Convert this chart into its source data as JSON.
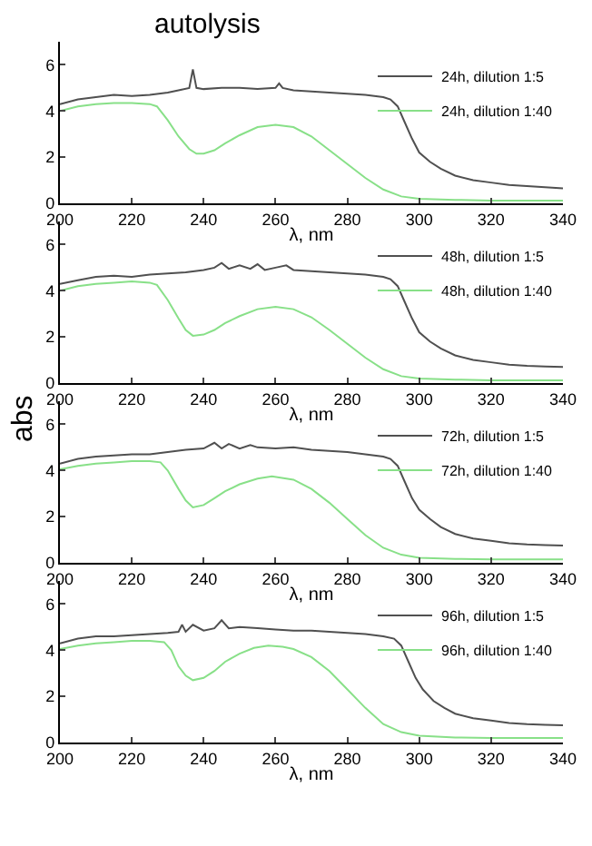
{
  "chart_data": [
    {
      "type": "line",
      "title": "autolysis",
      "xlabel": "λ, nm",
      "xlim": [
        200,
        340
      ],
      "ylim": [
        0,
        7
      ],
      "xticks": [
        200,
        220,
        240,
        260,
        280,
        300,
        320,
        340
      ],
      "yticks": [
        0,
        2,
        4,
        6
      ],
      "grid": false,
      "legend": "top right",
      "series": [
        {
          "name": "24h, dilution 1:5",
          "color": "#505050",
          "x": [
            200,
            205,
            210,
            215,
            220,
            225,
            230,
            233,
            236,
            237,
            238,
            240,
            245,
            250,
            255,
            260,
            261,
            262,
            265,
            270,
            275,
            280,
            285,
            290,
            292,
            294,
            296,
            298,
            300,
            303,
            306,
            310,
            315,
            320,
            325,
            330,
            335,
            340
          ],
          "values": [
            4.3,
            4.5,
            4.6,
            4.7,
            4.65,
            4.7,
            4.8,
            4.9,
            5.0,
            5.8,
            5.0,
            4.95,
            5.0,
            5.0,
            4.95,
            5.0,
            5.2,
            5.0,
            4.9,
            4.85,
            4.8,
            4.75,
            4.7,
            4.6,
            4.5,
            4.2,
            3.5,
            2.8,
            2.2,
            1.8,
            1.5,
            1.2,
            1.0,
            0.9,
            0.8,
            0.75,
            0.7,
            0.65
          ]
        },
        {
          "name": "24h, dilution 1:40",
          "color": "#88e088",
          "x": [
            200,
            205,
            210,
            215,
            220,
            225,
            227,
            230,
            233,
            236,
            238,
            240,
            243,
            246,
            250,
            255,
            260,
            265,
            270,
            275,
            280,
            285,
            290,
            295,
            300,
            310,
            320,
            340
          ],
          "values": [
            4.0,
            4.2,
            4.3,
            4.35,
            4.35,
            4.3,
            4.2,
            3.6,
            2.9,
            2.35,
            2.15,
            2.15,
            2.3,
            2.6,
            2.95,
            3.3,
            3.4,
            3.3,
            2.9,
            2.3,
            1.7,
            1.1,
            0.6,
            0.3,
            0.2,
            0.15,
            0.12,
            0.12
          ]
        }
      ]
    },
    {
      "type": "line",
      "xlabel": "λ, nm",
      "ylabel": "abs",
      "xlim": [
        200,
        340
      ],
      "ylim": [
        0,
        7
      ],
      "xticks": [
        200,
        220,
        240,
        260,
        280,
        300,
        320,
        340
      ],
      "yticks": [
        0,
        2,
        4,
        6
      ],
      "grid": false,
      "legend": "top right",
      "series": [
        {
          "name": "48h, dilution 1:5",
          "color": "#505050",
          "x": [
            200,
            205,
            210,
            215,
            220,
            225,
            230,
            235,
            240,
            243,
            245,
            247,
            250,
            253,
            255,
            257,
            260,
            263,
            265,
            270,
            275,
            280,
            285,
            290,
            292,
            294,
            296,
            298,
            300,
            303,
            306,
            310,
            315,
            320,
            325,
            330,
            335,
            340
          ],
          "values": [
            4.3,
            4.45,
            4.6,
            4.65,
            4.6,
            4.7,
            4.75,
            4.8,
            4.9,
            5.0,
            5.2,
            4.95,
            5.1,
            4.95,
            5.15,
            4.9,
            5.0,
            5.1,
            4.9,
            4.85,
            4.8,
            4.75,
            4.7,
            4.6,
            4.5,
            4.2,
            3.5,
            2.8,
            2.2,
            1.8,
            1.5,
            1.2,
            1.0,
            0.9,
            0.8,
            0.75,
            0.72,
            0.7
          ]
        },
        {
          "name": "48h, dilution 1:40",
          "color": "#88e088",
          "x": [
            200,
            205,
            210,
            215,
            220,
            225,
            227,
            230,
            233,
            235,
            237,
            240,
            243,
            246,
            250,
            255,
            260,
            265,
            270,
            275,
            280,
            285,
            290,
            295,
            300,
            310,
            320,
            340
          ],
          "values": [
            4.0,
            4.2,
            4.3,
            4.35,
            4.4,
            4.35,
            4.25,
            3.6,
            2.8,
            2.3,
            2.05,
            2.1,
            2.3,
            2.6,
            2.9,
            3.2,
            3.3,
            3.2,
            2.85,
            2.3,
            1.7,
            1.1,
            0.6,
            0.3,
            0.2,
            0.15,
            0.12,
            0.12
          ]
        }
      ]
    },
    {
      "type": "line",
      "xlabel": "λ, nm",
      "xlim": [
        200,
        340
      ],
      "ylim": [
        0,
        7
      ],
      "xticks": [
        200,
        220,
        240,
        260,
        280,
        300,
        320,
        340
      ],
      "yticks": [
        0,
        2,
        4,
        6
      ],
      "grid": false,
      "legend": "top right",
      "series": [
        {
          "name": "72h, dilution 1:5",
          "color": "#505050",
          "x": [
            200,
            205,
            210,
            215,
            220,
            225,
            230,
            235,
            240,
            243,
            245,
            247,
            250,
            253,
            255,
            260,
            265,
            270,
            275,
            280,
            285,
            290,
            292,
            294,
            296,
            298,
            300,
            303,
            306,
            310,
            315,
            320,
            325,
            330,
            335,
            340
          ],
          "values": [
            4.3,
            4.5,
            4.6,
            4.65,
            4.7,
            4.7,
            4.8,
            4.9,
            4.95,
            5.2,
            4.95,
            5.15,
            4.95,
            5.1,
            5.0,
            4.95,
            5.0,
            4.9,
            4.85,
            4.8,
            4.7,
            4.6,
            4.5,
            4.2,
            3.5,
            2.8,
            2.3,
            1.9,
            1.55,
            1.25,
            1.05,
            0.95,
            0.85,
            0.8,
            0.77,
            0.75
          ]
        },
        {
          "name": "72h, dilution 1:40",
          "color": "#88e088",
          "x": [
            200,
            205,
            210,
            215,
            220,
            225,
            228,
            230,
            233,
            235,
            237,
            240,
            243,
            246,
            250,
            255,
            259,
            265,
            270,
            275,
            280,
            285,
            290,
            295,
            300,
            310,
            320,
            340
          ],
          "values": [
            4.05,
            4.2,
            4.3,
            4.35,
            4.4,
            4.4,
            4.35,
            4.0,
            3.2,
            2.7,
            2.4,
            2.5,
            2.8,
            3.1,
            3.4,
            3.65,
            3.75,
            3.6,
            3.2,
            2.6,
            1.9,
            1.2,
            0.65,
            0.35,
            0.22,
            0.17,
            0.15,
            0.15
          ]
        }
      ]
    },
    {
      "type": "line",
      "xlabel": "λ, nm",
      "xlim": [
        200,
        340
      ],
      "ylim": [
        0,
        7
      ],
      "xticks": [
        200,
        220,
        240,
        260,
        280,
        300,
        320,
        340
      ],
      "yticks": [
        0,
        2,
        4,
        6
      ],
      "grid": false,
      "legend": "top right",
      "series": [
        {
          "name": "96h, dilution 1:5",
          "color": "#505050",
          "x": [
            200,
            205,
            210,
            215,
            220,
            225,
            230,
            233,
            234,
            235,
            237,
            240,
            243,
            245,
            247,
            250,
            255,
            260,
            265,
            270,
            275,
            280,
            285,
            290,
            293,
            295,
            297,
            299,
            301,
            304,
            307,
            310,
            315,
            320,
            325,
            330,
            335,
            340
          ],
          "values": [
            4.3,
            4.5,
            4.6,
            4.6,
            4.65,
            4.7,
            4.75,
            4.8,
            5.1,
            4.8,
            5.1,
            4.85,
            4.95,
            5.3,
            4.95,
            5.0,
            4.95,
            4.9,
            4.85,
            4.85,
            4.8,
            4.75,
            4.7,
            4.6,
            4.5,
            4.2,
            3.5,
            2.8,
            2.3,
            1.8,
            1.5,
            1.25,
            1.05,
            0.95,
            0.85,
            0.8,
            0.77,
            0.75
          ]
        },
        {
          "name": "96h, dilution 1:40",
          "color": "#88e088",
          "x": [
            200,
            205,
            210,
            215,
            220,
            225,
            229,
            231,
            233,
            235,
            237,
            240,
            243,
            246,
            250,
            254,
            258,
            262,
            265,
            270,
            275,
            280,
            285,
            290,
            295,
            300,
            310,
            320,
            340
          ],
          "values": [
            4.05,
            4.2,
            4.3,
            4.35,
            4.4,
            4.4,
            4.35,
            4.0,
            3.3,
            2.9,
            2.7,
            2.8,
            3.1,
            3.5,
            3.85,
            4.1,
            4.2,
            4.15,
            4.05,
            3.7,
            3.1,
            2.3,
            1.5,
            0.8,
            0.45,
            0.3,
            0.22,
            0.2,
            0.2
          ]
        }
      ]
    }
  ]
}
